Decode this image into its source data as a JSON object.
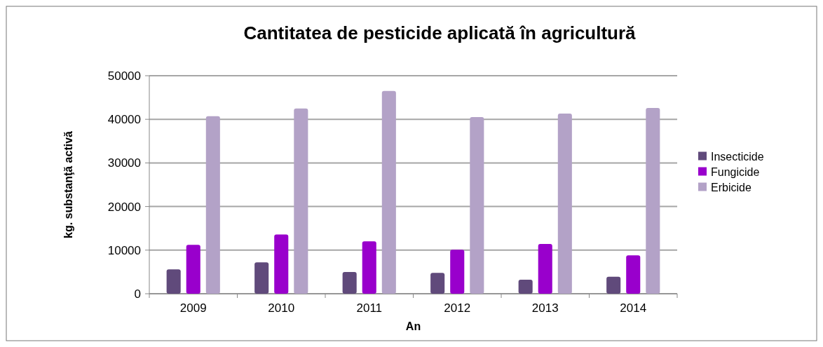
{
  "chart_data": {
    "type": "bar",
    "title": "Cantitatea de pesticide aplicată în agricultură",
    "xlabel": "An",
    "ylabel": "kg. substanţă activă",
    "categories": [
      "2009",
      "2010",
      "2011",
      "2012",
      "2013",
      "2014"
    ],
    "series": [
      {
        "name": "Insecticide",
        "color": "#604a7b",
        "values": [
          5600,
          7200,
          5000,
          4800,
          3200,
          3900
        ]
      },
      {
        "name": "Fungicide",
        "color": "#9900cc",
        "values": [
          11200,
          13600,
          12000,
          10100,
          11400,
          8800
        ]
      },
      {
        "name": "Erbicide",
        "color": "#b3a2c7",
        "values": [
          40700,
          42500,
          46500,
          40500,
          41300,
          42600
        ]
      }
    ],
    "ylim": [
      0,
      50000
    ],
    "yticks": [
      0,
      10000,
      20000,
      30000,
      40000,
      50000
    ],
    "grid": "y",
    "legend": "right"
  }
}
